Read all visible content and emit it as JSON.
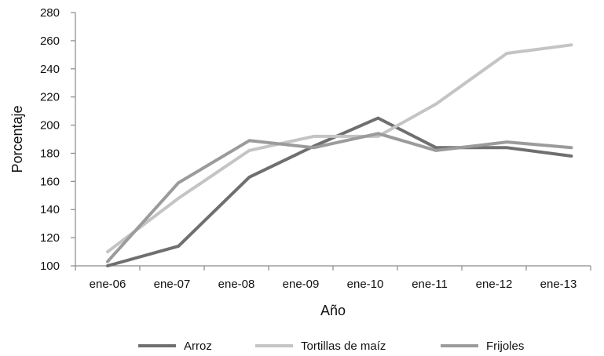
{
  "chart_data": {
    "type": "line",
    "title": "",
    "xlabel": "Año",
    "ylabel": "Porcentaje",
    "ylim": [
      100,
      280
    ],
    "yticks": [
      100,
      120,
      140,
      160,
      180,
      200,
      220,
      240,
      260,
      280
    ],
    "categories": [
      "ene-06",
      "ene-07",
      "ene-08",
      "ene-09",
      "ene-10",
      "ene-11",
      "ene-12",
      "ene-13"
    ],
    "grid": false,
    "legend_position": "bottom",
    "series": [
      {
        "name": "Arroz",
        "color": "#6f6f6f",
        "points": [
          {
            "x": 0.0,
            "y": 100
          },
          {
            "x": 1.1,
            "y": 114
          },
          {
            "x": 2.2,
            "y": 163
          },
          {
            "x": 3.2,
            "y": 185
          },
          {
            "x": 4.2,
            "y": 205
          },
          {
            "x": 5.1,
            "y": 184
          },
          {
            "x": 6.2,
            "y": 184
          },
          {
            "x": 7.2,
            "y": 178
          }
        ]
      },
      {
        "name": "Tortillas de maíz",
        "color": "#c4c4c4",
        "points": [
          {
            "x": 0.0,
            "y": 110
          },
          {
            "x": 1.1,
            "y": 148
          },
          {
            "x": 2.2,
            "y": 182
          },
          {
            "x": 3.2,
            "y": 192
          },
          {
            "x": 4.2,
            "y": 192
          },
          {
            "x": 5.1,
            "y": 215
          },
          {
            "x": 6.2,
            "y": 251
          },
          {
            "x": 7.2,
            "y": 257
          }
        ]
      },
      {
        "name": "Frijoles",
        "color": "#9b9b9b",
        "points": [
          {
            "x": 0.0,
            "y": 103
          },
          {
            "x": 1.1,
            "y": 159
          },
          {
            "x": 2.2,
            "y": 189
          },
          {
            "x": 3.2,
            "y": 184
          },
          {
            "x": 4.2,
            "y": 194
          },
          {
            "x": 5.1,
            "y": 182
          },
          {
            "x": 6.2,
            "y": 188
          },
          {
            "x": 7.2,
            "y": 184
          }
        ]
      }
    ]
  }
}
